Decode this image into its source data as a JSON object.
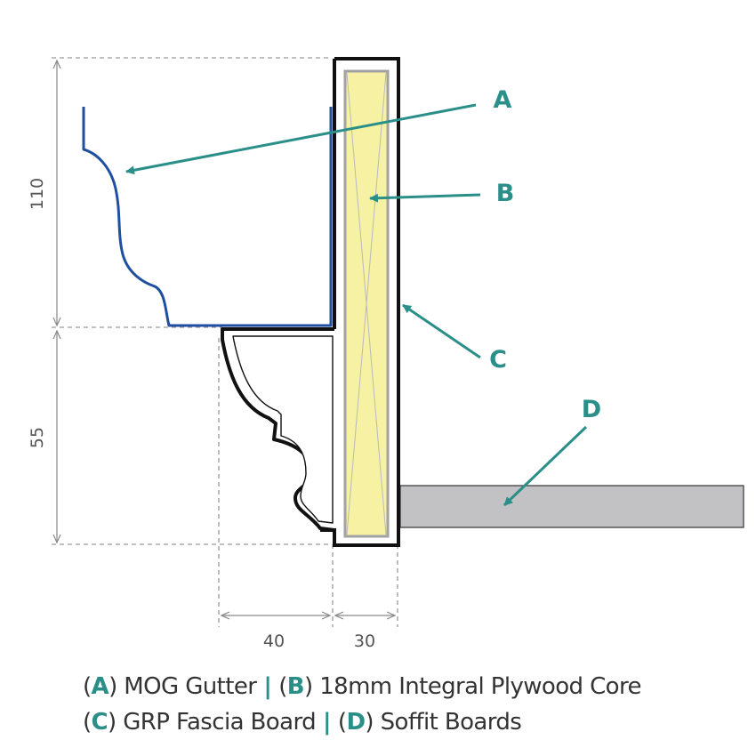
{
  "colors": {
    "accent": "#2a8f88",
    "gutter": "#1f4fa0",
    "plywood": "#f6f1a3",
    "soffit": "#c2c2c4",
    "dimension": "#8a8a8a",
    "outline": "#111111"
  },
  "callouts": {
    "a": "A",
    "b": "B",
    "c": "C",
    "d": "D"
  },
  "dimensions": {
    "gutter_height": "110",
    "moulding_height": "55",
    "moulding_width": "40",
    "fascia_width": "30"
  },
  "legend": {
    "open_paren": "(",
    "close_paren": ")",
    "separator": "|",
    "line1": [
      {
        "key": "A",
        "label": " MOG Gutter"
      },
      {
        "key": "B",
        "label": " 18mm Integral Plywood Core"
      }
    ],
    "line2": [
      {
        "key": "C",
        "label": " GRP Fascia Board"
      },
      {
        "key": "D",
        "label": " Soffit Boards"
      }
    ]
  }
}
